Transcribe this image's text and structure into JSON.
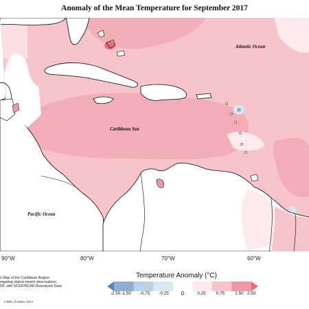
{
  "title": "Anomaly of the Mean Temperature for September 2017",
  "map": {
    "region": "Caribbean",
    "ocean_labels": {
      "atlantic": "Atlantic Ocean",
      "caribbean": "Caribbean Sea",
      "pacific": "Pacific Ocean"
    },
    "longitude_labels": [
      "90°W",
      "80°W",
      "70°W",
      "60°W"
    ],
    "colors": {
      "land": "#ffffff",
      "anomaly_0_25": "#fdeaed",
      "anomaly_0_75": "#f7c4cb",
      "anomaly_1_50": "#ee9aa6",
      "anomaly_2_50": "#e86b79",
      "cold_0_25": "#d7e8f1",
      "cold_1_50": "#8eafd2"
    }
  },
  "notes": [
    "n Map of the Caribbean Region.",
    "regating station based observations,",
    "DF, with NCEP/NCAR Reanalysis Data."
  ],
  "credit": "CIMH October 2017",
  "legend": {
    "title": "Temperature Anomaly (°C)",
    "ticks": [
      "-2.50",
      "-1.50",
      "-0.75",
      "-0.25",
      "0",
      "0.25",
      "0.75",
      "1.50",
      "2.50"
    ],
    "colors": [
      "#5b7fc0",
      "#8eafd2",
      "#b9d1e4",
      "#d7e8f1",
      "#ffffff",
      "#fdeaed",
      "#f7c4cb",
      "#ee9aa6",
      "#e86b79"
    ]
  }
}
